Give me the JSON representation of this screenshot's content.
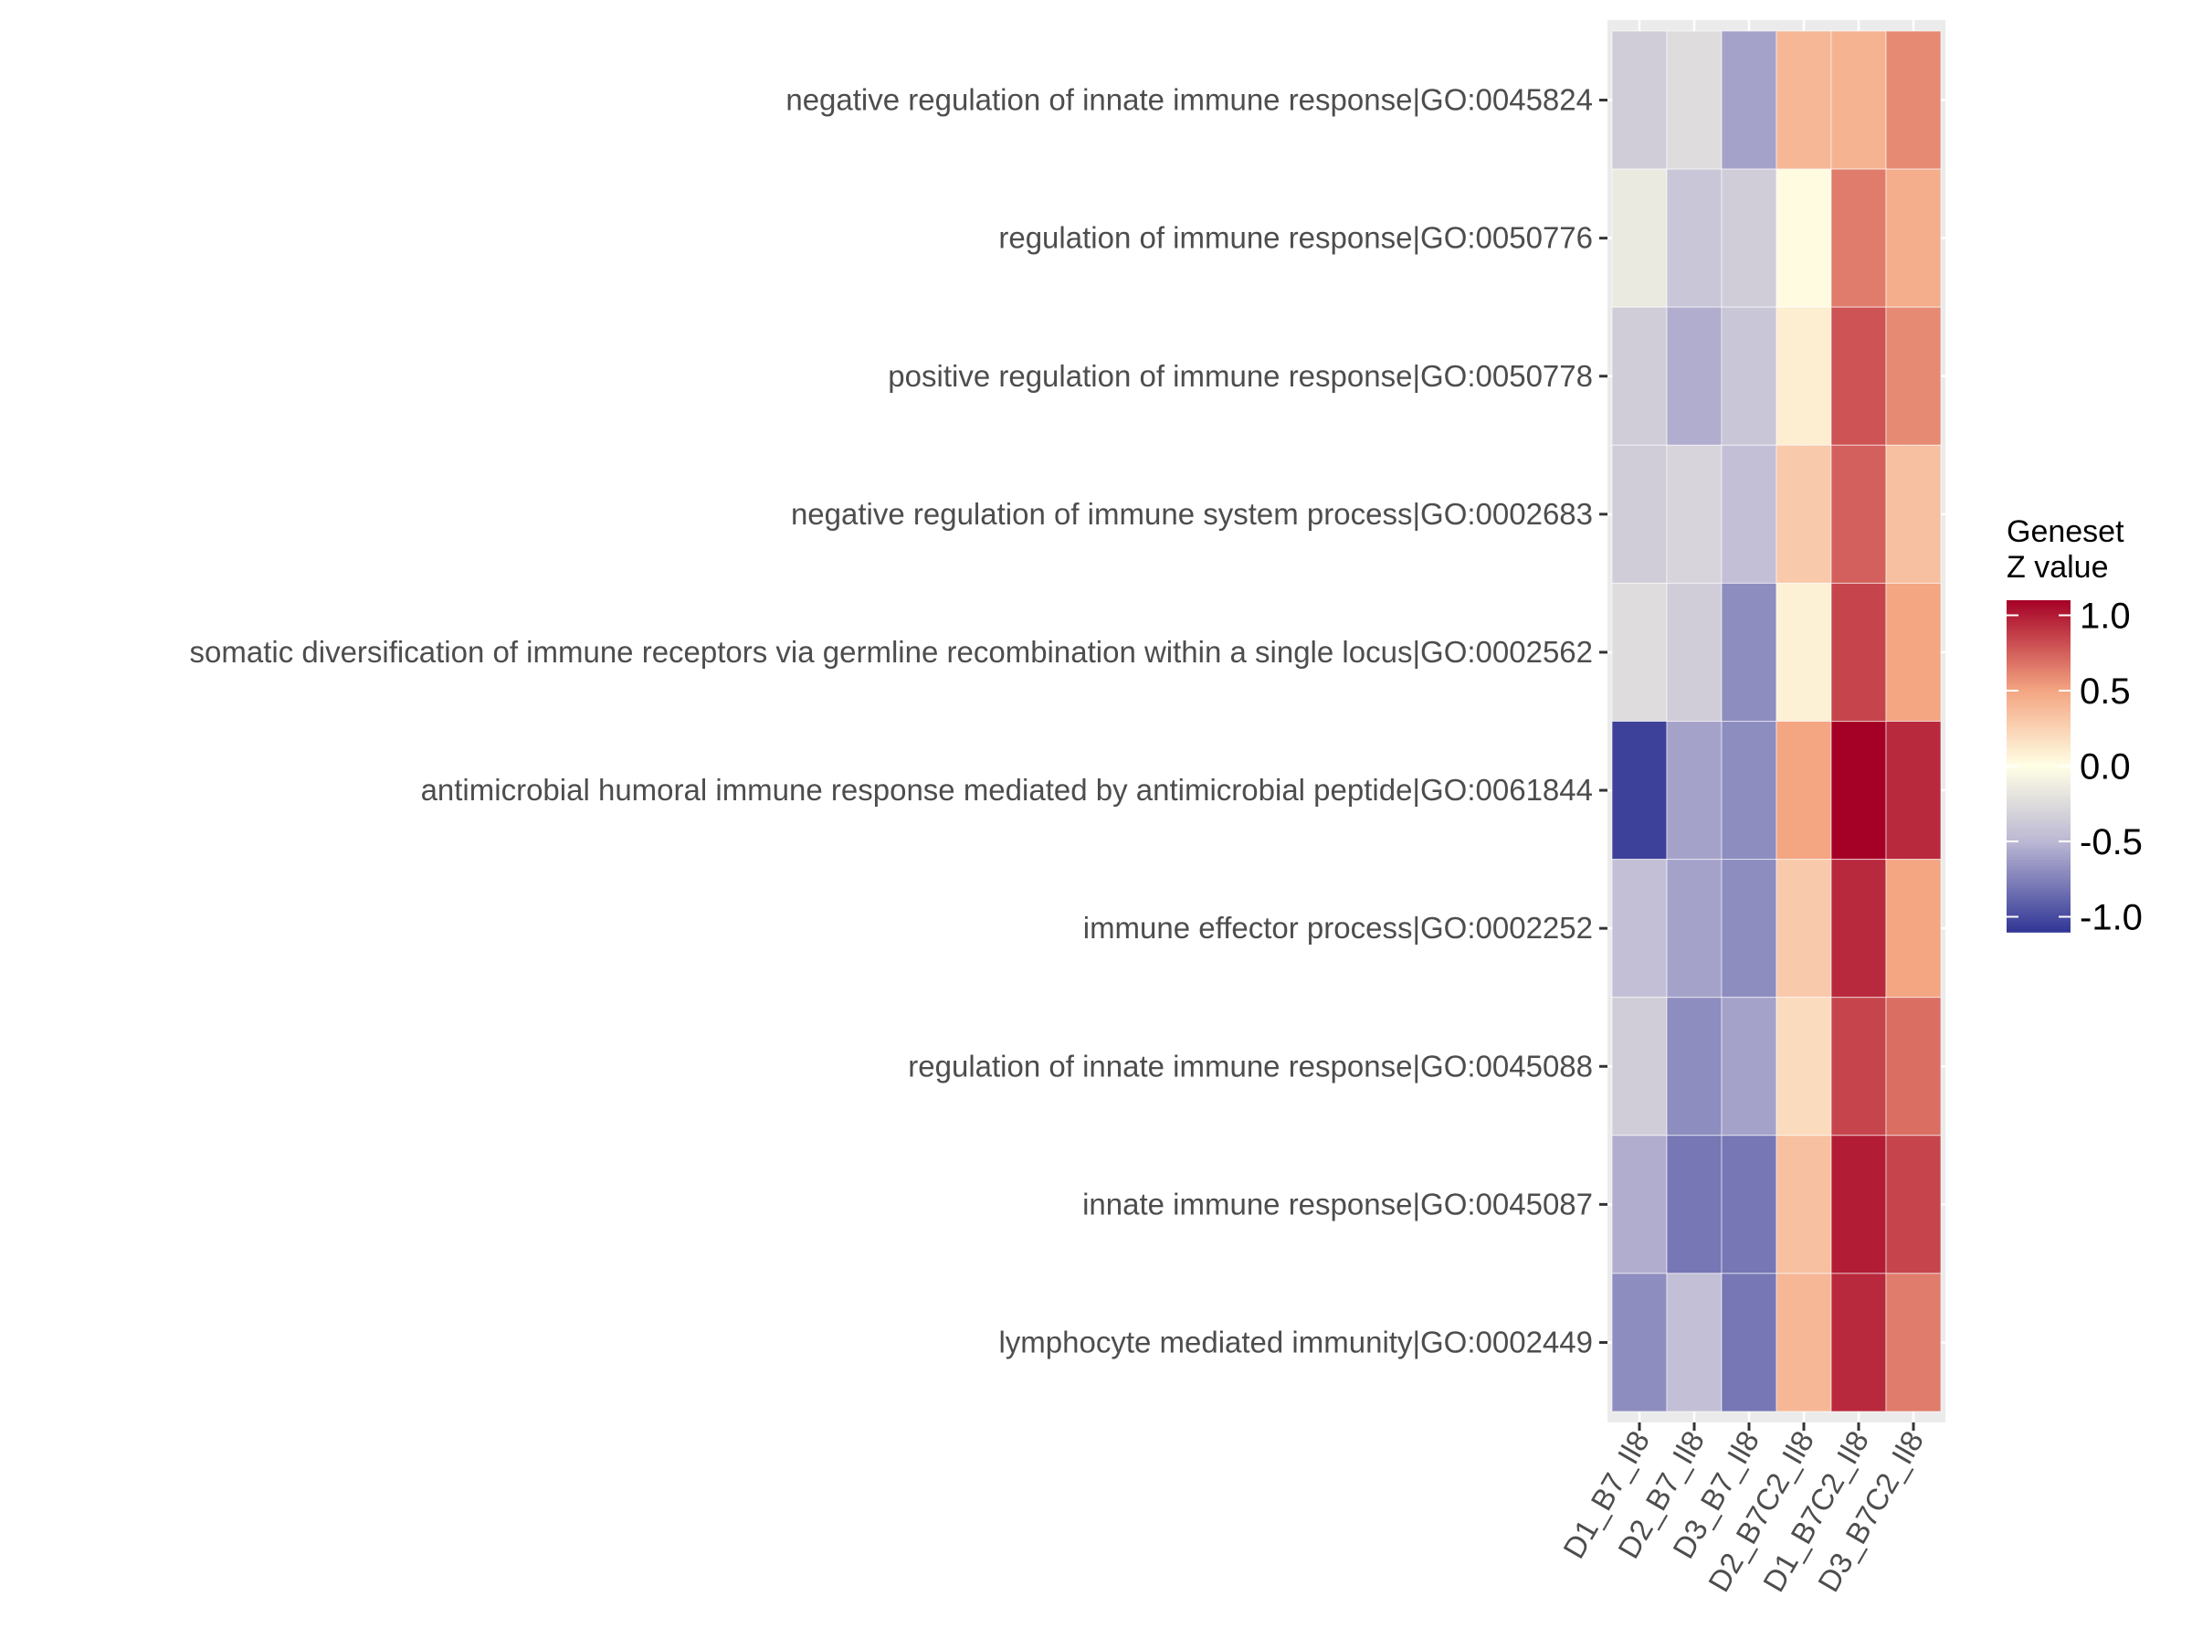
{
  "chart_data": {
    "type": "heatmap",
    "title": "",
    "xlabel": "",
    "ylabel": "",
    "columns": [
      "D1_B7_Il8",
      "D2_B7_Il8",
      "D3_B7_Il8",
      "D2_B7C2_Il8",
      "D1_B7C2_Il8",
      "D3_B7C2_Il8"
    ],
    "rows": [
      "negative regulation of innate immune response|GO:0045824",
      "regulation of immune response|GO:0050776",
      "positive regulation of immune response|GO:0050778",
      "negative regulation of immune system process|GO:0002683",
      "somatic diversification of immune receptors via germline recombination within a single locus|GO:0002562",
      "antimicrobial humoral immune response mediated by antimicrobial peptide|GO:0061844",
      "immune effector process|GO:0002252",
      "regulation of innate immune response|GO:0045088",
      "innate immune response|GO:0045087",
      "lymphocyte mediated immunity|GO:0002449"
    ],
    "values": [
      [
        -0.35,
        -0.25,
        -0.6,
        0.4,
        0.42,
        0.6
      ],
      [
        -0.15,
        -0.4,
        -0.35,
        0.02,
        0.65,
        0.45
      ],
      [
        -0.35,
        -0.55,
        -0.4,
        0.1,
        0.8,
        0.6
      ],
      [
        -0.35,
        -0.3,
        -0.45,
        0.3,
        0.75,
        0.35
      ],
      [
        -0.25,
        -0.35,
        -0.7,
        0.08,
        0.85,
        0.5
      ],
      [
        -1.05,
        -0.6,
        -0.7,
        0.5,
        1.1,
        0.95
      ],
      [
        -0.45,
        -0.6,
        -0.7,
        0.3,
        0.95,
        0.5
      ],
      [
        -0.35,
        -0.7,
        -0.6,
        0.2,
        0.85,
        0.7
      ],
      [
        -0.55,
        -0.8,
        -0.8,
        0.35,
        1.0,
        0.85
      ],
      [
        -0.7,
        -0.45,
        -0.8,
        0.4,
        0.95,
        0.65
      ]
    ],
    "grid": true,
    "legend": {
      "title_lines": [
        "Geneset",
        "Z value"
      ],
      "ticks": [
        1.0,
        0.5,
        0.0,
        -0.5,
        -1.0
      ],
      "tick_labels": [
        "1.0",
        "0.5",
        "0.0",
        "-0.5",
        "-1.0"
      ],
      "range": [
        -1.1,
        1.1
      ],
      "position": "right"
    },
    "colors": {
      "low": "#313695",
      "mid_low": "#bcb8d4",
      "mid": "#ffffe5",
      "mid_high": "#f4a582",
      "high": "#a50026",
      "panel_background": "#ebebeb",
      "grid": "#ffffff",
      "text": "#4d4d4d"
    }
  }
}
